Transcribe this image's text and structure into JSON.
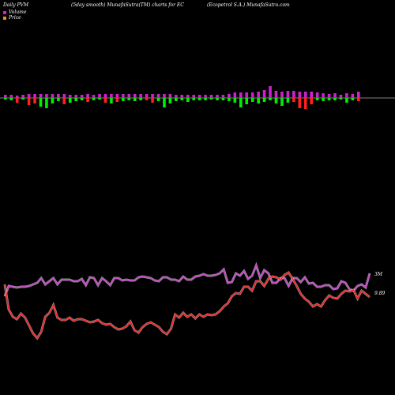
{
  "header": {
    "left": "Daily PVM",
    "middle": "(5day smooth) MunafaSutra(TM) charts for EC",
    "right": "(Ecopetrol S.A.) MunafaSutra.com"
  },
  "legend": [
    {
      "label": "Volume",
      "color": "#ff00ff"
    },
    {
      "label": "Price",
      "color": "#ff8c00"
    }
  ],
  "chart_data": [
    {
      "type": "bar",
      "description_role": "PVM volume bars",
      "colors": {
        "up": "#cc22cc",
        "down_positive": "#00ee00",
        "down_negative": "#ff2020"
      },
      "values": [
        {
          "up": 4,
          "down": -2,
          "kind": "pos"
        },
        {
          "up": 4,
          "down": -3,
          "kind": "pos"
        },
        {
          "up": 3,
          "down": -6,
          "kind": "neg"
        },
        {
          "up": 4,
          "down": -2,
          "kind": "pos"
        },
        {
          "up": 5,
          "down": -9,
          "kind": "neg"
        },
        {
          "up": 5,
          "down": -7,
          "kind": "neg"
        },
        {
          "up": 5,
          "down": -11,
          "kind": "pos"
        },
        {
          "up": 5,
          "down": -13,
          "kind": "pos"
        },
        {
          "up": 5,
          "down": -7,
          "kind": "pos"
        },
        {
          "up": 5,
          "down": -4,
          "kind": "pos"
        },
        {
          "up": 5,
          "down": -8,
          "kind": "neg"
        },
        {
          "up": 4,
          "down": -6,
          "kind": "pos"
        },
        {
          "up": 4,
          "down": -4,
          "kind": "pos"
        },
        {
          "up": 4,
          "down": -3,
          "kind": "pos"
        },
        {
          "up": 5,
          "down": -5,
          "kind": "neg"
        },
        {
          "up": 4,
          "down": -3,
          "kind": "pos"
        },
        {
          "up": 5,
          "down": -2,
          "kind": "pos"
        },
        {
          "up": 5,
          "down": -6,
          "kind": "neg"
        },
        {
          "up": 5,
          "down": -7,
          "kind": "pos"
        },
        {
          "up": 5,
          "down": -5,
          "kind": "neg"
        },
        {
          "up": 5,
          "down": -4,
          "kind": "pos"
        },
        {
          "up": 5,
          "down": -3,
          "kind": "pos"
        },
        {
          "up": 5,
          "down": -4,
          "kind": "pos"
        },
        {
          "up": 5,
          "down": -3,
          "kind": "pos"
        },
        {
          "up": 5,
          "down": -3,
          "kind": "neg"
        },
        {
          "up": 5,
          "down": -6,
          "kind": "neg"
        },
        {
          "up": 5,
          "down": -4,
          "kind": "pos"
        },
        {
          "up": 5,
          "down": -12,
          "kind": "pos"
        },
        {
          "up": 5,
          "down": -7,
          "kind": "pos"
        },
        {
          "up": 4,
          "down": -4,
          "kind": "pos"
        },
        {
          "up": 4,
          "down": -3,
          "kind": "pos"
        },
        {
          "up": 4,
          "down": -5,
          "kind": "pos"
        },
        {
          "up": 4,
          "down": -3,
          "kind": "pos"
        },
        {
          "up": 4,
          "down": -3,
          "kind": "pos"
        },
        {
          "up": 4,
          "down": -3,
          "kind": "pos"
        },
        {
          "up": 4,
          "down": -2,
          "kind": "pos"
        },
        {
          "up": 4,
          "down": -3,
          "kind": "pos"
        },
        {
          "up": 4,
          "down": -3,
          "kind": "pos"
        },
        {
          "up": 5,
          "down": -4,
          "kind": "pos"
        },
        {
          "up": 7,
          "down": -6,
          "kind": "pos"
        },
        {
          "up": 7,
          "down": -12,
          "kind": "pos"
        },
        {
          "up": 7,
          "down": -8,
          "kind": "pos"
        },
        {
          "up": 7,
          "down": -5,
          "kind": "pos"
        },
        {
          "up": 8,
          "down": -7,
          "kind": "pos"
        },
        {
          "up": 10,
          "down": -5,
          "kind": "pos"
        },
        {
          "up": 15,
          "down": -3,
          "kind": "pos"
        },
        {
          "up": 9,
          "down": -7,
          "kind": "pos"
        },
        {
          "up": 8,
          "down": -10,
          "kind": "pos"
        },
        {
          "up": 9,
          "down": -6,
          "kind": "pos"
        },
        {
          "up": 9,
          "down": -5,
          "kind": "neg"
        },
        {
          "up": 8,
          "down": -13,
          "kind": "neg"
        },
        {
          "up": 8,
          "down": -14,
          "kind": "neg"
        },
        {
          "up": 8,
          "down": -8,
          "kind": "neg"
        },
        {
          "up": 7,
          "down": -3,
          "kind": "pos"
        },
        {
          "up": 6,
          "down": -4,
          "kind": "pos"
        },
        {
          "up": 5,
          "down": -3,
          "kind": "pos"
        },
        {
          "up": 6,
          "down": -3,
          "kind": "pos"
        },
        {
          "up": 4,
          "down": -2,
          "kind": "pos"
        },
        {
          "up": 6,
          "down": -6,
          "kind": "pos"
        },
        {
          "up": 5,
          "down": -3,
          "kind": "pos"
        },
        {
          "up": 8,
          "down": -4,
          "kind": "neg"
        }
      ]
    },
    {
      "type": "line",
      "description_role": "Volume line (5day smooth)",
      "color": "#cc44cc",
      "end_label": "3M",
      "values": [
        375,
        362,
        363,
        364,
        363,
        363,
        362,
        360,
        358,
        352,
        360,
        356,
        352,
        360,
        354,
        354,
        354,
        356,
        356,
        353,
        361,
        351,
        352,
        361,
        352,
        356,
        361,
        352,
        352,
        355,
        354,
        355,
        355,
        351,
        350,
        351,
        352,
        355,
        356,
        351,
        351,
        354,
        354,
        356,
        350,
        354,
        354,
        350,
        349,
        347,
        349,
        349,
        348,
        346,
        341,
        358,
        357,
        346,
        349,
        343,
        353,
        349,
        336,
        352,
        342,
        346,
        358,
        358,
        352,
        352,
        362,
        352,
        352,
        357,
        351,
        359,
        358,
        363,
        363,
        361,
        361,
        366,
        365,
        356,
        358,
        366,
        368,
        362,
        360,
        364,
        346
      ]
    },
    {
      "type": "line",
      "description_role": "Price line (5day smooth)",
      "color": "#ff2020",
      "end_label": "9.89",
      "values": [
        360,
        392,
        401,
        404,
        397,
        402,
        412,
        422,
        428,
        420,
        401,
        396,
        386,
        402,
        405,
        405,
        402,
        406,
        404,
        404,
        406,
        408,
        407,
        405,
        409,
        411,
        410,
        414,
        417,
        416,
        413,
        407,
        418,
        421,
        414,
        410,
        408,
        411,
        414,
        420,
        423,
        416,
        398,
        402,
        396,
        401,
        398,
        403,
        398,
        401,
        398,
        399,
        398,
        394,
        388,
        384,
        375,
        371,
        372,
        363,
        363,
        368,
        356,
        356,
        362,
        353,
        350,
        351,
        354,
        348,
        345,
        353,
        362,
        372,
        378,
        382,
        388,
        385,
        388,
        380,
        374,
        377,
        378,
        372,
        368,
        369,
        367,
        378,
        368,
        372,
        376
      ]
    }
  ]
}
